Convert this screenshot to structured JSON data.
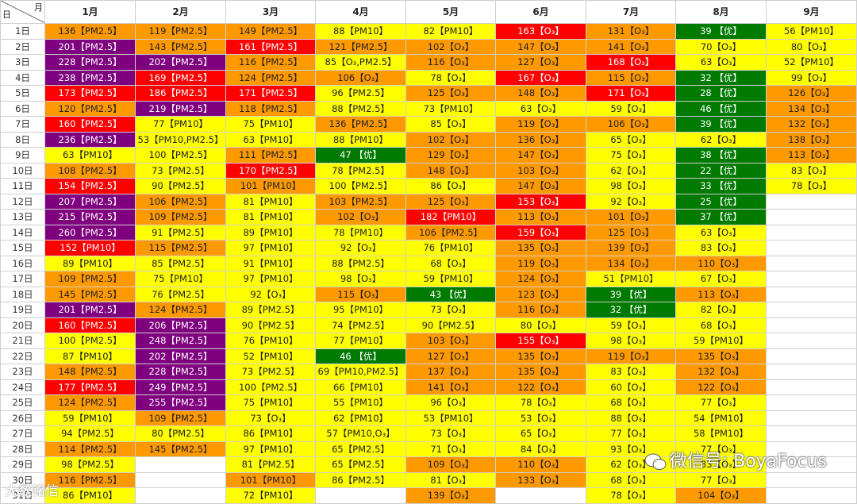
{
  "header": {
    "corner_month": "月",
    "corner_day": "日",
    "months": [
      "1月",
      "2月",
      "3月",
      "4月",
      "5月",
      "6月",
      "7月",
      "8月",
      "9月"
    ]
  },
  "legend_colors": {
    "green": "#007a00",
    "yellow": "#ffff00",
    "orange": "#ff9900",
    "red": "#ff0000",
    "purple": "#7f007f"
  },
  "days": [
    "1日",
    "2日",
    "3日",
    "4日",
    "5日",
    "6日",
    "7日",
    "8日",
    "9日",
    "10日",
    "11日",
    "12日",
    "13日",
    "14日",
    "15日",
    "16日",
    "17日",
    "18日",
    "19日",
    "20日",
    "21日",
    "22日",
    "23日",
    "24日",
    "25日",
    "26日",
    "27日",
    "28日",
    "29日",
    "30日",
    "31日"
  ],
  "rows": [
    [
      "136【PM2.5】|orange",
      "119【PM2.5】|orange",
      "149【PM2.5】|orange",
      "88【PM10】|yellow",
      "82【PM10】|yellow",
      "163【O₃】|red",
      "131【O₃】|orange",
      "39 【优】|green",
      "56【PM10】|yellow"
    ],
    [
      "201【PM2.5】|purple",
      "143【PM2.5】|orange",
      "161【PM2.5】|red",
      "121【PM2.5】|orange",
      "102【O₃】|orange",
      "147【O₃】|orange",
      "141【O₃】|orange",
      "70【O₃】|yellow",
      "80【O₃】|yellow"
    ],
    [
      "228【PM2.5】|purple",
      "202【PM2.5】|purple",
      "116【PM2.5】|orange",
      "85【O₃,PM2.5】|yellow",
      "116【O₃】|orange",
      "127【O₃】|orange",
      "168【O₃】|red",
      "63【O₃】|yellow",
      "52【PM10】|yellow"
    ],
    [
      "238【PM2.5】|purple",
      "169【PM2.5】|red",
      "124【PM2.5】|orange",
      "106【O₃】|orange",
      "78【O₃】|yellow",
      "167【O₃】|red",
      "115【O₃】|orange",
      "32 【优】|green",
      "99【O₃】|yellow"
    ],
    [
      "173【PM2.5】|red",
      "186【PM2.5】|red",
      "171【PM2.5】|red",
      "96【PM2.5】|yellow",
      "125【O₃】|orange",
      "148【O₃】|orange",
      "171【O₃】|red",
      "28 【优】|green",
      "126【O₃】|orange"
    ],
    [
      "120【PM2.5】|orange",
      "219【PM2.5】|purple",
      "118【PM2.5】|orange",
      "88【PM2.5】|yellow",
      "73【PM10】|yellow",
      "63【O₃】|yellow",
      "59【O₃】|yellow",
      "46 【优】|green",
      "134【O₃】|orange"
    ],
    [
      "160【PM2.5】|red",
      "77【PM10】|yellow",
      "75【PM10】|yellow",
      "136【PM2.5】|orange",
      "85【O₃】|yellow",
      "119【O₃】|orange",
      "106【O₃】|orange",
      "39 【优】|green",
      "132【O₃】|orange"
    ],
    [
      "236【PM2.5】|purple",
      "53【PM10,PM2.5】|yellow",
      "63【PM10】|yellow",
      "88【PM10】|yellow",
      "102【O₃】|orange",
      "136【O₃】|orange",
      "65【O₃】|yellow",
      "62【O₃】|yellow",
      "138【O₃】|orange"
    ],
    [
      "63【PM10】|yellow",
      "100【PM2.5】|yellow",
      "111【PM2.5】|orange",
      "47 【优】|green",
      "129【O₃】|orange",
      "147【O₃】|orange",
      "75【O₃】|yellow",
      "38 【优】|green",
      "113【O₃】|orange"
    ],
    [
      "108【PM2.5】|orange",
      "73【PM2.5】|yellow",
      "170【PM2.5】|red",
      "78【PM2.5】|yellow",
      "148【O₃】|orange",
      "103【O₃】|orange",
      "62【O₃】|yellow",
      "22 【优】|green",
      "83【O₃】|yellow"
    ],
    [
      "154【PM2.5】|red",
      "90【PM2.5】|yellow",
      "101【PM10】|orange",
      "100【PM2.5】|yellow",
      "86【O₃】|yellow",
      "147【O₃】|orange",
      "98【O₃】|yellow",
      "33 【优】|green",
      "78【O₃】|yellow"
    ],
    [
      "207【PM2.5】|purple",
      "106【PM2.5】|orange",
      "81【PM10】|yellow",
      "103【PM2.5】|orange",
      "125【O₃】|orange",
      "153【O₃】|red",
      "92【O₃】|yellow",
      "25 【优】|green",
      "|blank"
    ],
    [
      "215【PM2.5】|purple",
      "109【PM2.5】|orange",
      "81【PM10】|yellow",
      "102【O₃】|orange",
      "182【PM10】|red",
      "113【O₃】|orange",
      "101【O₃】|orange",
      "37 【优】|green",
      "|blank"
    ],
    [
      "260【PM2.5】|purple",
      "91【PM2.5】|yellow",
      "89【PM10】|yellow",
      "78【PM10】|yellow",
      "106【PM2.5】|orange",
      "159【O₃】|red",
      "125【O₃】|orange",
      "63【O₃】|yellow",
      "|blank"
    ],
    [
      "152【PM10】|red",
      "115【PM2.5】|orange",
      "97【PM10】|yellow",
      "92【O₃】|yellow",
      "76【PM10】|yellow",
      "135【O₃】|orange",
      "139【O₃】|orange",
      "83【O₃】|yellow",
      "|blank"
    ],
    [
      "89【PM10】|yellow",
      "85【PM2.5】|yellow",
      "91【PM10】|yellow",
      "88【PM2.5】|yellow",
      "68【O₃】|yellow",
      "119【O₃】|orange",
      "134【O₃】|orange",
      "110【O₃】|orange",
      "|blank"
    ],
    [
      "109【PM2.5】|orange",
      "75【PM10】|yellow",
      "97【PM10】|yellow",
      "98【O₃】|yellow",
      "59【PM10】|yellow",
      "124【O₃】|orange",
      "51【PM10】|yellow",
      "67【O₃】|yellow",
      "|blank"
    ],
    [
      "145【PM2.5】|orange",
      "76【PM2.5】|yellow",
      "92【O₃】|yellow",
      "115【O₃】|orange",
      "43 【优】|green",
      "123【O₃】|orange",
      "39 【优】|green",
      "113【O₃】|orange",
      "|blank"
    ],
    [
      "201【PM2.5】|purple",
      "124【PM2.5】|orange",
      "89【PM2.5】|yellow",
      "95【PM10】|yellow",
      "73【O₃】|yellow",
      "116【O₃】|orange",
      "32 【优】|green",
      "82【O₃】|yellow",
      "|blank"
    ],
    [
      "160【PM2.5】|red",
      "206【PM2.5】|purple",
      "90【PM2.5】|yellow",
      "74【PM2.5】|yellow",
      "90【PM2.5】|yellow",
      "80【O₃】|yellow",
      "59【O₃】|yellow",
      "68【O₃】|yellow",
      "|blank"
    ],
    [
      "100【PM2.5】|yellow",
      "248【PM2.5】|purple",
      "76【PM10】|yellow",
      "77【PM10】|yellow",
      "103【O₃】|orange",
      "155【O₃】|red",
      "98【O₃】|yellow",
      "59【PM10】|yellow",
      "|blank"
    ],
    [
      "87【PM10】|yellow",
      "202【PM2.5】|purple",
      "52【PM10】|yellow",
      "46 【优】|green",
      "127【O₃】|orange",
      "135【O₃】|orange",
      "119【O₃】|orange",
      "135【O₃】|orange",
      "|blank"
    ],
    [
      "148【PM2.5】|orange",
      "228【PM2.5】|purple",
      "73【PM2.5】|yellow",
      "69【PM10,PM2.5】|yellow",
      "137【O₃】|orange",
      "135【O₃】|orange",
      "83【O₃】|yellow",
      "132【O₃】|orange",
      "|blank"
    ],
    [
      "177【PM2.5】|red",
      "249【PM2.5】|purple",
      "100【PM2.5】|yellow",
      "66【PM10】|yellow",
      "141【O₃】|orange",
      "122【O₃】|orange",
      "60【O₃】|yellow",
      "122【O₃】|orange",
      "|blank"
    ],
    [
      "124【PM2.5】|orange",
      "255【PM2.5】|purple",
      "75【PM10】|yellow",
      "55【PM10】|yellow",
      "96【O₃】|yellow",
      "78【O₃】|yellow",
      "68【O₃】|yellow",
      "77【O₃】|yellow",
      "|blank"
    ],
    [
      "59【PM10】|yellow",
      "109【PM2.5】|orange",
      "73【O₃】|yellow",
      "62【PM10】|yellow",
      "53【PM10】|yellow",
      "53【O₃】|yellow",
      "88【O₃】|yellow",
      "54【PM10】|yellow",
      "|blank"
    ],
    [
      "94【PM2.5】|yellow",
      "80【PM2.5】|yellow",
      "86【PM10】|yellow",
      "57【PM10,O₃】|yellow",
      "73【O₃】|yellow",
      "65【O₃】|yellow",
      "77【O₃】|yellow",
      "58【PM10】|yellow",
      "|blank"
    ],
    [
      "114【PM2.5】|orange",
      "145【PM2.5】|orange",
      "97【PM10】|yellow",
      "65【PM2.5】|yellow",
      "71【O₃】|yellow",
      "84【O₃】|yellow",
      "93【O₃】|yellow",
      "77【O₃】|yellow",
      "|blank"
    ],
    [
      "98【PM2.5】|yellow",
      "|blank",
      "81【PM2.5】|yellow",
      "65【PM2.5】|yellow",
      "109【O₃】|orange",
      "110【O₃】|orange",
      "62【O₃】|yellow",
      "83【O₃】|yellow",
      "|blank"
    ],
    [
      "116【PM2.5】|orange",
      "|blank",
      "101【PM10】|orange",
      "86【PM2.5】|yellow",
      "81【O₃】|yellow",
      "133【O₃】|orange",
      "68【O₃】|yellow",
      "77【O₃】|yellow",
      "|blank"
    ],
    [
      "86【PM10】|yellow",
      "|blank",
      "72【PM10】|yellow",
      "|blank",
      "139【O₃】|orange",
      "|blank",
      "78【O₃】|yellow",
      "104【O₃】|orange",
      "|blank"
    ]
  ],
  "watermark": {
    "wechat_text": "微信号: BoyaFocus",
    "corner_text": "大数铭信"
  }
}
